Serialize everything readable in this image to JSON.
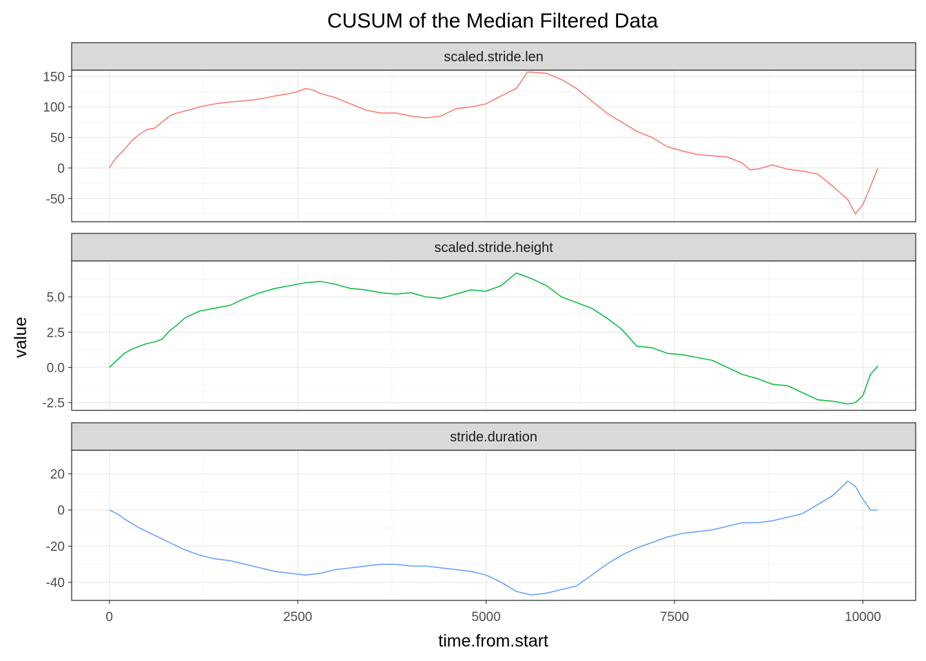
{
  "chart_data": {
    "type": "line",
    "title": "CUSUM of the Median Filtered Data",
    "xlabel": "time.from.start",
    "ylabel": "value",
    "facet_layout": "stacked-vertical",
    "shared_x": true,
    "grid": true,
    "legend": "none",
    "xlim": [
      -500,
      10700
    ],
    "x_ticks": [
      0,
      2500,
      5000,
      7500,
      10000
    ],
    "x_tick_labels": [
      "0",
      "2500",
      "5000",
      "7500",
      "10000"
    ],
    "panels": [
      {
        "strip": "scaled.stride.len",
        "color": "#F8766D",
        "ylim": [
          -88,
          160
        ],
        "y_ticks": [
          -50,
          0,
          50,
          100,
          150
        ],
        "y_tick_labels": [
          "-50",
          "0",
          "50",
          "100",
          "150"
        ],
        "series": [
          {
            "x": [
              0,
              50,
              100,
              200,
              300,
              400,
              500,
              600,
              700,
              800,
              900,
              1000,
              1200,
              1400,
              1600,
              1800,
              2000,
              2200,
              2400,
              2500,
              2600,
              2700,
              2800,
              3000,
              3200,
              3400,
              3600,
              3800,
              4000,
              4200,
              4400,
              4600,
              4800,
              5000,
              5200,
              5400,
              5550,
              5600,
              5800,
              6000,
              6200,
              6400,
              6600,
              6800,
              7000,
              7200,
              7400,
              7600,
              7800,
              8000,
              8200,
              8400,
              8500,
              8600,
              8800,
              9000,
              9200,
              9400,
              9600,
              9800,
              9900,
              10000,
              10100,
              10200
            ],
            "y": [
              0,
              10,
              18,
              30,
              45,
              55,
              63,
              65,
              75,
              85,
              90,
              93,
              100,
              105,
              108,
              110,
              113,
              118,
              122,
              125,
              130,
              128,
              122,
              115,
              105,
              95,
              90,
              90,
              85,
              82,
              85,
              97,
              100,
              105,
              118,
              130,
              157,
              157,
              155,
              145,
              130,
              110,
              90,
              75,
              60,
              50,
              35,
              28,
              22,
              20,
              18,
              8,
              -3,
              -2,
              5,
              -2,
              -5,
              -10,
              -30,
              -52,
              -75,
              -60,
              -30,
              0
            ]
          }
        ]
      },
      {
        "strip": "scaled.stride.height",
        "color": "#00BA38",
        "ylim": [
          -3.05,
          7.55
        ],
        "y_ticks": [
          -2.5,
          0.0,
          2.5,
          5.0
        ],
        "y_tick_labels": [
          "-2.5",
          "0.0",
          "2.5",
          "5.0"
        ],
        "series": [
          {
            "x": [
              0,
              100,
              200,
              300,
              400,
              500,
              600,
              700,
              800,
              900,
              1000,
              1200,
              1400,
              1600,
              1800,
              2000,
              2200,
              2400,
              2600,
              2800,
              3000,
              3200,
              3400,
              3600,
              3800,
              4000,
              4200,
              4400,
              4600,
              4800,
              5000,
              5200,
              5400,
              5500,
              5600,
              5800,
              6000,
              6200,
              6400,
              6600,
              6800,
              7000,
              7200,
              7400,
              7600,
              7800,
              8000,
              8200,
              8400,
              8600,
              8800,
              9000,
              9200,
              9400,
              9600,
              9800,
              9900,
              10000,
              10100,
              10200
            ],
            "y": [
              0,
              0.5,
              1.0,
              1.3,
              1.5,
              1.7,
              1.8,
              2.0,
              2.6,
              3.0,
              3.5,
              4.0,
              4.2,
              4.4,
              4.9,
              5.3,
              5.6,
              5.8,
              6.0,
              6.1,
              5.9,
              5.6,
              5.5,
              5.3,
              5.2,
              5.3,
              5.0,
              4.9,
              5.2,
              5.5,
              5.4,
              5.8,
              6.7,
              6.5,
              6.3,
              5.8,
              5.0,
              4.6,
              4.2,
              3.5,
              2.7,
              1.5,
              1.4,
              1.0,
              0.9,
              0.7,
              0.5,
              0.0,
              -0.5,
              -0.8,
              -1.2,
              -1.3,
              -1.8,
              -2.3,
              -2.4,
              -2.6,
              -2.5,
              -2.0,
              -0.5,
              0.1
            ]
          }
        ]
      },
      {
        "strip": "stride.duration",
        "color": "#619CFF",
        "ylim": [
          -50,
          33
        ],
        "y_ticks": [
          -40,
          -20,
          0,
          20
        ],
        "y_tick_labels": [
          "-40",
          "-20",
          "0",
          "20"
        ],
        "series": [
          {
            "x": [
              0,
              100,
              200,
              400,
              600,
              800,
              1000,
              1200,
              1400,
              1600,
              1800,
              2000,
              2200,
              2400,
              2600,
              2800,
              3000,
              3200,
              3400,
              3600,
              3800,
              4000,
              4200,
              4400,
              4600,
              4800,
              5000,
              5200,
              5400,
              5600,
              5800,
              6000,
              6200,
              6400,
              6600,
              6800,
              7000,
              7200,
              7400,
              7600,
              7800,
              8000,
              8200,
              8400,
              8600,
              8800,
              9000,
              9200,
              9400,
              9600,
              9800,
              9900,
              10000,
              10100,
              10200
            ],
            "y": [
              0,
              -2,
              -5,
              -10,
              -14,
              -18,
              -22,
              -25,
              -27,
              -28,
              -30,
              -32,
              -34,
              -35,
              -36,
              -35,
              -33,
              -32,
              -31,
              -30,
              -30,
              -31,
              -31,
              -32,
              -33,
              -34,
              -36,
              -40,
              -45,
              -47,
              -46,
              -44,
              -42,
              -36,
              -30,
              -25,
              -21,
              -18,
              -15,
              -13,
              -12,
              -11,
              -9,
              -7,
              -7,
              -6,
              -4,
              -2,
              3,
              8,
              16,
              13,
              6,
              0,
              0
            ]
          }
        ]
      }
    ]
  }
}
